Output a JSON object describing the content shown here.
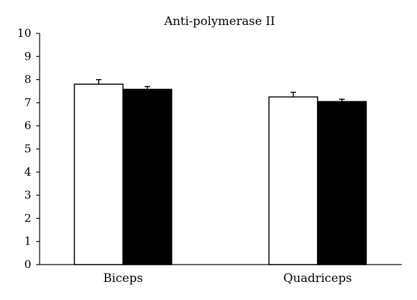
{
  "chart_data": {
    "type": "bar",
    "title": "Anti-polymerase II",
    "xlabel": "",
    "ylabel": "",
    "categories": [
      "Biceps",
      "Quadriceps"
    ],
    "series": [
      {
        "values": [
          7.8,
          7.25
        ],
        "errors": [
          0.2,
          0.2
        ],
        "fill": "#ffffff"
      },
      {
        "values": [
          7.58,
          7.05
        ],
        "errors": [
          0.12,
          0.1
        ],
        "fill": "#000000"
      }
    ],
    "ylim": [
      0,
      10
    ],
    "yticks": [
      0,
      1,
      2,
      3,
      4,
      5,
      6,
      7,
      8,
      9,
      10
    ],
    "grid": false,
    "legend": "none"
  }
}
